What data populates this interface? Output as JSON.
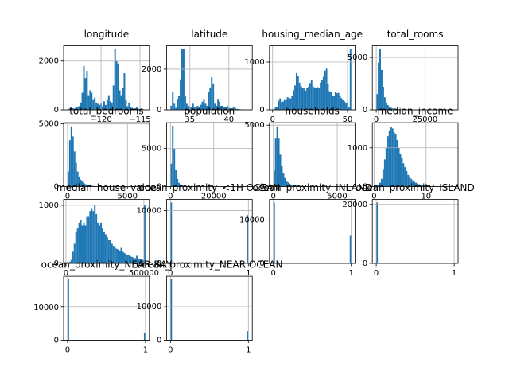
{
  "chart_data": [
    {
      "type": "histogram",
      "title": "longitude",
      "color": "#1f77b4",
      "grid": true,
      "bins": [
        -124.3,
        -124.1,
        -123.9,
        -123.7,
        -123.5,
        -123.3,
        -123.1,
        -122.9,
        -122.7,
        -122.5,
        -122.3,
        -122.1,
        -121.9,
        -121.7,
        -121.5,
        -121.3,
        -121.1,
        -120.9,
        -120.7,
        -120.5,
        -120.3,
        -120.1,
        -119.9,
        -119.7,
        -119.5,
        -119.3,
        -119.1,
        -118.9,
        -118.7,
        -118.5,
        -118.3,
        -118.1,
        -117.9,
        -117.7,
        -117.5,
        -117.3,
        -117.1,
        -116.9,
        -116.7,
        -116.5,
        -116.3,
        -116.1,
        -115.9,
        -115.7,
        -115.5,
        -115.3,
        -115.1,
        -114.9,
        -114.7,
        -114.5,
        -114.3
      ],
      "counts": [
        30,
        60,
        80,
        60,
        50,
        100,
        120,
        150,
        300,
        700,
        1800,
        1300,
        1600,
        600,
        800,
        700,
        400,
        500,
        300,
        250,
        200,
        250,
        150,
        350,
        200,
        400,
        600,
        350,
        300,
        1000,
        2500,
        2000,
        1900,
        800,
        600,
        900,
        1500,
        400,
        150,
        300,
        100,
        80,
        50,
        60,
        100,
        40,
        20,
        15,
        20,
        10
      ],
      "xlim": [
        -124.8,
        -113.8
      ],
      "ylim": [
        0,
        2625
      ],
      "xticks": [
        {
          "value": -120,
          "label": "−120"
        },
        {
          "value": -115,
          "label": "−115"
        }
      ],
      "yticks": [
        0,
        2000
      ]
    },
    {
      "type": "histogram",
      "title": "latitude",
      "color": "#1f77b4",
      "grid": true,
      "bins": [
        32.5,
        32.7,
        32.9,
        33.1,
        33.3,
        33.5,
        33.7,
        33.9,
        34.1,
        34.3,
        34.5,
        34.7,
        34.9,
        35.1,
        35.3,
        35.5,
        35.7,
        35.9,
        36.1,
        36.3,
        36.5,
        36.7,
        36.9,
        37.1,
        37.3,
        37.5,
        37.7,
        37.9,
        38.1,
        38.3,
        38.5,
        38.7,
        38.9,
        39.1,
        39.3,
        39.5,
        39.7,
        39.9,
        40.1,
        40.3,
        40.5,
        40.7,
        40.9,
        41.1,
        41.3,
        41.5,
        41.7,
        41.9,
        42.1,
        42.3,
        42.5
      ],
      "counts": [
        200,
        900,
        300,
        100,
        500,
        700,
        1500,
        3000,
        3000,
        700,
        300,
        200,
        150,
        150,
        300,
        150,
        150,
        200,
        150,
        250,
        400,
        500,
        300,
        200,
        900,
        1100,
        1600,
        1300,
        300,
        200,
        500,
        400,
        200,
        200,
        150,
        150,
        200,
        100,
        80,
        60,
        150,
        100,
        50,
        40,
        30,
        20,
        20,
        10,
        0,
        0
      ],
      "xlim": [
        32.0,
        43.0
      ],
      "ylim": [
        0,
        3150
      ],
      "xticks": [
        35,
        40
      ],
      "yticks": [
        0,
        2000
      ]
    },
    {
      "type": "histogram",
      "title": "housing_median_age",
      "color": "#1f77b4",
      "grid": true,
      "bins": [
        0.5,
        1.5,
        2.5,
        3.5,
        4.5,
        5.5,
        6.5,
        7.5,
        8.5,
        9.5,
        10.5,
        11.5,
        12.5,
        13.5,
        14.5,
        15.5,
        16.5,
        17.5,
        18.5,
        19.5,
        20.5,
        21.5,
        22.5,
        23.5,
        24.5,
        25.5,
        26.5,
        27.5,
        28.5,
        29.5,
        30.5,
        31.5,
        32.5,
        33.5,
        34.5,
        35.5,
        36.5,
        37.5,
        38.5,
        39.5,
        40.5,
        41.5,
        42.5,
        43.5,
        44.5,
        45.5,
        46.5,
        47.5,
        48.5,
        49.5,
        50.5,
        51.5,
        52.5
      ],
      "counts": [
        10,
        60,
        60,
        190,
        240,
        160,
        175,
        205,
        205,
        265,
        250,
        240,
        300,
        410,
        510,
        770,
        700,
        570,
        500,
        465,
        445,
        400,
        450,
        480,
        560,
        620,
        490,
        470,
        460,
        475,
        460,
        570,
        620,
        690,
        820,
        860,
        540,
        390,
        370,
        300,
        300,
        370,
        350,
        355,
        295,
        245,
        200,
        175,
        135,
        135,
        50,
        1270
      ],
      "xlim": [
        -2.1,
        55.1
      ],
      "ylim": [
        0,
        1340
      ],
      "xticks": [
        0,
        50
      ],
      "yticks": [
        0,
        1000
      ]
    },
    {
      "type": "histogram",
      "title": "total_rooms",
      "color": "#1f77b4",
      "grid": true,
      "bins": [
        0,
        800,
        1600,
        2400,
        3200,
        4000,
        4800,
        5600,
        6400,
        7200,
        8000,
        8800,
        9600,
        10400,
        11200,
        12000,
        12800,
        13600,
        14400,
        15200,
        16000,
        16800,
        17600,
        18400,
        19200,
        20000,
        20800,
        21600,
        22400,
        23200,
        24000,
        24800,
        25600,
        26400,
        27200,
        28000,
        28800,
        29600,
        30400,
        31200,
        32000,
        32800,
        33600,
        34400,
        35200,
        36000,
        36800,
        37600,
        38400,
        39200,
        40000
      ],
      "counts": [
        1500,
        4500,
        5800,
        3800,
        2200,
        1200,
        700,
        450,
        300,
        200,
        140,
        100,
        80,
        60,
        45,
        35,
        25,
        20,
        15,
        12,
        10,
        8,
        6,
        5,
        4,
        3,
        3,
        2,
        2,
        1,
        1,
        1,
        1,
        0,
        1,
        1,
        0,
        0,
        1,
        0,
        1,
        1,
        0,
        0,
        0,
        0,
        0,
        1,
        0,
        1
      ],
      "xlim": [
        -2000,
        42000
      ],
      "ylim": [
        0,
        6100
      ],
      "xticks": [
        0,
        25000
      ],
      "yticks": [
        0,
        5000
      ]
    },
    {
      "type": "histogram",
      "title": "total_bedrooms",
      "color": "#1f77b4",
      "grid": true,
      "bins": [
        0,
        130,
        260,
        390,
        520,
        650,
        780,
        910,
        1040,
        1170,
        1300,
        1430,
        1560,
        1690,
        1820,
        1950,
        2080,
        2210,
        2340,
        2470,
        2600,
        2730,
        2860,
        2990,
        3120,
        3250,
        3380,
        3510,
        3640,
        3770,
        3900,
        4030,
        4160,
        4290,
        4420,
        4550,
        4680,
        4810,
        4940,
        5070,
        5200,
        5330,
        5460,
        5590,
        5720,
        5850,
        5980,
        6110,
        6240,
        6370,
        6500
      ],
      "counts": [
        1200,
        3700,
        4800,
        4000,
        2800,
        1900,
        1200,
        800,
        550,
        400,
        280,
        200,
        150,
        120,
        90,
        70,
        50,
        40,
        30,
        25,
        20,
        15,
        12,
        10,
        8,
        6,
        5,
        4,
        3,
        3,
        2,
        2,
        2,
        1,
        1,
        1,
        1,
        1,
        0,
        1,
        0,
        1,
        0,
        0,
        1,
        0,
        0,
        0,
        0,
        1
      ],
      "xlim": [
        -325,
        6825
      ],
      "ylim": [
        0,
        5100
      ],
      "xticks": [
        0,
        5000
      ],
      "yticks": [
        0,
        5000
      ]
    },
    {
      "type": "histogram",
      "title": "population",
      "color": "#1f77b4",
      "grid": true,
      "bins": [
        0,
        720,
        1440,
        2160,
        2880,
        3600,
        4320,
        5040,
        5760,
        6480,
        7200,
        7920,
        8640,
        9360,
        10080,
        10800,
        11520,
        12240,
        12960,
        13680,
        14400,
        15120,
        15840,
        16560,
        17280,
        18000,
        18720,
        19440,
        20160,
        20880,
        21600,
        22320,
        23040,
        23760,
        24480,
        25200,
        25920,
        26640,
        27360,
        28080,
        28800,
        29520,
        30240,
        30960,
        31680,
        32400,
        33120,
        33840,
        34560,
        35280,
        36000
      ],
      "counts": [
        3000,
        8000,
        5000,
        2200,
        1000,
        500,
        300,
        200,
        120,
        80,
        60,
        40,
        30,
        20,
        15,
        10,
        8,
        6,
        5,
        4,
        3,
        3,
        2,
        2,
        1,
        1,
        1,
        1,
        1,
        0,
        1,
        0,
        0,
        0,
        0,
        1,
        0,
        0,
        0,
        0,
        0,
        0,
        0,
        0,
        0,
        0,
        0,
        0,
        0,
        1
      ],
      "xlim": [
        -1800,
        37800
      ],
      "ylim": [
        0,
        8400
      ],
      "xticks": [
        0,
        20000
      ],
      "yticks": [
        0,
        5000
      ]
    },
    {
      "type": "histogram",
      "title": "households",
      "color": "#1f77b4",
      "grid": true,
      "bins": [
        0,
        122,
        244,
        366,
        488,
        610,
        732,
        854,
        976,
        1098,
        1220,
        1342,
        1464,
        1586,
        1708,
        1830,
        1952,
        2074,
        2196,
        2318,
        2440,
        2562,
        2684,
        2806,
        2928,
        3050,
        3172,
        3294,
        3416,
        3538,
        3660,
        3782,
        3904,
        4026,
        4148,
        4270,
        4392,
        4514,
        4636,
        4758,
        4880,
        5002,
        5124,
        5246,
        5368,
        5490,
        5612,
        5734,
        5856,
        5978,
        6100
      ],
      "counts": [
        1300,
        3900,
        4900,
        3900,
        2600,
        1700,
        1100,
        700,
        480,
        340,
        240,
        170,
        130,
        100,
        80,
        60,
        45,
        35,
        28,
        22,
        18,
        14,
        11,
        9,
        7,
        5,
        4,
        3,
        3,
        2,
        2,
        2,
        1,
        1,
        1,
        1,
        1,
        0,
        1,
        0,
        1,
        0,
        0,
        1,
        0,
        0,
        0,
        0,
        0,
        1
      ],
      "xlim": [
        -305,
        6405
      ],
      "ylim": [
        0,
        5200
      ],
      "xticks": [
        0,
        5000
      ],
      "yticks": [
        0,
        5000
      ]
    },
    {
      "type": "histogram",
      "title": "median_income",
      "color": "#1f77b4",
      "grid": true,
      "bins": [
        0.4,
        0.7,
        1.0,
        1.3,
        1.6,
        1.9,
        2.2,
        2.5,
        2.8,
        3.1,
        3.4,
        3.7,
        4.0,
        4.3,
        4.6,
        4.9,
        5.2,
        5.5,
        5.8,
        6.1,
        6.4,
        6.7,
        7.0,
        7.3,
        7.6,
        7.9,
        8.2,
        8.5,
        8.8,
        9.1,
        9.4,
        9.7,
        10.0,
        10.3,
        10.6,
        10.9,
        11.2,
        11.5,
        11.8,
        12.1,
        12.4,
        12.7,
        13.0,
        13.3,
        13.6,
        13.9,
        14.2,
        14.5,
        14.8,
        15.1,
        15.4
      ],
      "counts": [
        50,
        40,
        100,
        200,
        450,
        700,
        1000,
        1300,
        1450,
        1550,
        1500,
        1400,
        1350,
        1200,
        1000,
        850,
        750,
        600,
        500,
        400,
        300,
        250,
        200,
        160,
        120,
        100,
        80,
        60,
        50,
        40,
        35,
        30,
        25,
        20,
        15,
        12,
        10,
        8,
        6,
        5,
        4,
        4,
        3,
        2,
        2,
        1,
        1,
        1,
        50,
        0
      ],
      "xlim": [
        -0.35,
        16.15
      ],
      "ylim": [
        0,
        1650
      ],
      "xticks": [
        0,
        10
      ],
      "yticks": [
        0,
        1000
      ]
    },
    {
      "type": "histogram",
      "title": "median_house_value",
      "color": "#1f77b4",
      "grid": true,
      "bins": [
        10000,
        20000,
        30000,
        40000,
        50000,
        60000,
        70000,
        80000,
        90000,
        100000,
        110000,
        120000,
        130000,
        140000,
        150000,
        160000,
        170000,
        180000,
        190000,
        200000,
        210000,
        220000,
        230000,
        240000,
        250000,
        260000,
        270000,
        280000,
        290000,
        300000,
        310000,
        320000,
        330000,
        340000,
        350000,
        360000,
        370000,
        380000,
        390000,
        400000,
        410000,
        420000,
        430000,
        440000,
        450000,
        460000,
        470000,
        480000,
        490000,
        500000,
        510000
      ],
      "counts": [
        10,
        30,
        60,
        200,
        350,
        550,
        600,
        700,
        750,
        650,
        700,
        650,
        800,
        800,
        900,
        950,
        900,
        1000,
        850,
        700,
        650,
        700,
        600,
        550,
        500,
        450,
        400,
        400,
        350,
        300,
        280,
        250,
        240,
        220,
        280,
        200,
        180,
        160,
        150,
        140,
        120,
        110,
        100,
        90,
        130,
        80,
        75,
        70,
        60,
        1000
      ],
      "xlim": [
        -15000,
        535000
      ],
      "ylim": [
        0,
        1100
      ],
      "xticks": [
        0,
        500000
      ],
      "yticks": [
        0,
        1000
      ]
    },
    {
      "type": "histogram",
      "title": "ocean_proximity_<1H OCEAN",
      "color": "#1f77b4",
      "grid": true,
      "bins": [
        0,
        0.02,
        0.98,
        1
      ],
      "counts": [
        11504,
        0,
        9136
      ],
      "xlim": [
        -0.05,
        1.05
      ],
      "ylim": [
        0,
        12079
      ],
      "xticks": [
        0,
        1
      ],
      "yticks": [
        0,
        10000
      ]
    },
    {
      "type": "histogram",
      "title": "ocean_proximity_INLAND",
      "color": "#1f77b4",
      "grid": true,
      "bins": [
        0,
        0.02,
        0.98,
        1
      ],
      "counts": [
        14089,
        0,
        6551
      ],
      "xlim": [
        -0.05,
        1.05
      ],
      "ylim": [
        0,
        14793
      ],
      "xticks": [
        0,
        1
      ],
      "yticks": [
        0,
        10000
      ]
    },
    {
      "type": "histogram",
      "title": "ocean_proximity_ISLAND",
      "color": "#1f77b4",
      "grid": true,
      "bins": [
        0,
        0.02,
        0.98,
        1
      ],
      "counts": [
        20635,
        0,
        5
      ],
      "xlim": [
        -0.05,
        1.05
      ],
      "ylim": [
        0,
        21667
      ],
      "xticks": [
        0,
        1
      ],
      "yticks": [
        0,
        20000
      ]
    },
    {
      "type": "histogram",
      "title": "ocean_proximity_NEAR BAY",
      "color": "#1f77b4",
      "grid": true,
      "bins": [
        0,
        0.02,
        0.98,
        1
      ],
      "counts": [
        18350,
        0,
        2290
      ],
      "xlim": [
        -0.05,
        1.05
      ],
      "ylim": [
        0,
        19268
      ],
      "xticks": [
        0,
        1
      ],
      "yticks": [
        0,
        10000
      ]
    },
    {
      "type": "histogram",
      "title": "ocean_proximity_NEAR OCEAN",
      "color": "#1f77b4",
      "grid": true,
      "bins": [
        0,
        0.02,
        0.98,
        1
      ],
      "counts": [
        17982,
        0,
        2658
      ],
      "xlim": [
        -0.05,
        1.05
      ],
      "ylim": [
        0,
        18881
      ],
      "xticks": [
        0,
        1
      ],
      "yticks": [
        0,
        10000
      ]
    }
  ]
}
